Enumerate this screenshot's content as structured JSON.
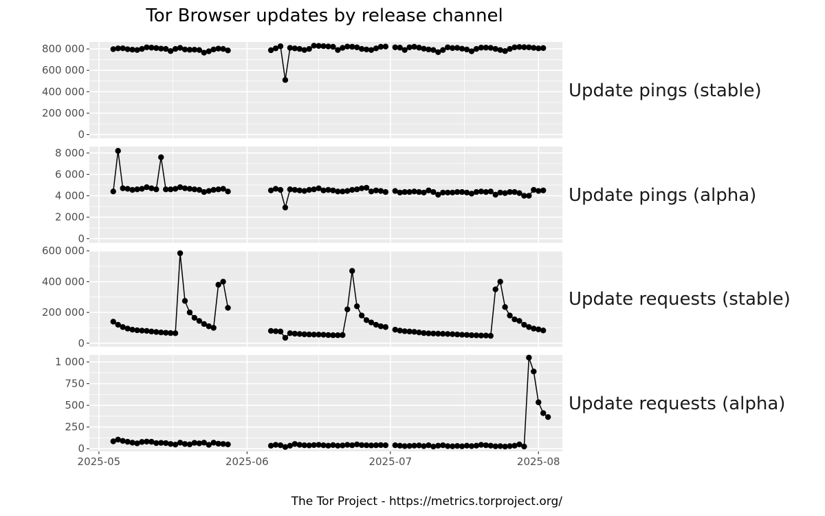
{
  "chart_data": {
    "type": "line",
    "title": "Tor Browser updates by release channel",
    "caption": "The Tor Project - https://metrics.torproject.org/",
    "x_ticks": [
      "2025-05",
      "2025-06",
      "2025-07",
      "2025-08"
    ],
    "x_range": [
      "2025-04-29",
      "2025-08-06"
    ],
    "grid": true,
    "panels": [
      {
        "label": "Update pings (stable)",
        "y_ticks": [
          0,
          200000,
          400000,
          600000,
          800000
        ],
        "y_tick_labels": [
          "0",
          "200 000",
          "400 000",
          "600 000",
          "800 000"
        ],
        "ylim": [
          -35000,
          865000
        ],
        "segments": [
          {
            "start": "2025-05-04",
            "values": [
              798000,
              805000,
              806000,
              797000,
              793000,
              790000,
              800000,
              815000,
              812000,
              808000,
              803000,
              800000,
              780000,
              800000,
              810000,
              795000,
              792000,
              793000,
              790000,
              765000,
              778000,
              795000,
              803000,
              800000,
              786000
            ]
          },
          {
            "start": "2025-06-06",
            "values": [
              788000,
              805000,
              825000,
              510000,
              810000,
              805000,
              800000,
              790000,
              800000,
              830000,
              828000,
              826000,
              823000,
              820000,
              790000,
              810000,
              822000,
              820000,
              815000,
              800000,
              795000,
              790000,
              805000,
              820000,
              822000
            ]
          },
          {
            "start": "2025-07-02",
            "values": [
              815000,
              812000,
              790000,
              815000,
              820000,
              812000,
              802000,
              795000,
              790000,
              770000,
              790000,
              815000,
              808000,
              810000,
              802000,
              795000,
              778000,
              800000,
              812000,
              812000,
              810000,
              800000,
              790000,
              780000,
              800000,
              815000,
              818000,
              816000,
              815000,
              810000,
              805000,
              808000
            ]
          }
        ]
      },
      {
        "label": "Update pings (alpha)",
        "y_ticks": [
          0,
          2000,
          4000,
          6000,
          8000
        ],
        "y_tick_labels": [
          "0",
          "2 000",
          "4 000",
          "6 000",
          "8 000"
        ],
        "ylim": [
          -400,
          8600
        ],
        "segments": [
          {
            "start": "2025-05-04",
            "values": [
              4400,
              8200,
              4700,
              4650,
              4550,
              4600,
              4650,
              4800,
              4700,
              4600,
              7600,
              4600,
              4600,
              4650,
              4800,
              4700,
              4650,
              4600,
              4550,
              4350,
              4450,
              4550,
              4600,
              4650,
              4400
            ]
          },
          {
            "start": "2025-06-06",
            "values": [
              4500,
              4650,
              4550,
              2900,
              4600,
              4550,
              4500,
              4450,
              4550,
              4600,
              4700,
              4500,
              4550,
              4500,
              4400,
              4400,
              4450,
              4550,
              4600,
              4700,
              4750,
              4400,
              4500,
              4450,
              4350
            ]
          },
          {
            "start": "2025-07-02",
            "values": [
              4450,
              4300,
              4350,
              4350,
              4400,
              4350,
              4300,
              4500,
              4350,
              4100,
              4300,
              4300,
              4300,
              4350,
              4350,
              4300,
              4200,
              4350,
              4400,
              4350,
              4400,
              4100,
              4300,
              4250,
              4350,
              4350,
              4250,
              4000,
              4000,
              4550,
              4450,
              4500
            ]
          }
        ]
      },
      {
        "label": "Update requests (stable)",
        "y_ticks": [
          0,
          200000,
          400000,
          600000
        ],
        "y_tick_labels": [
          "0",
          "200 000",
          "400 000",
          "600 000"
        ],
        "ylim": [
          -23000,
          603000
        ],
        "segments": [
          {
            "start": "2025-05-04",
            "values": [
              140000,
              120000,
              105000,
              95000,
              88000,
              84000,
              82000,
              80000,
              76000,
              73000,
              70000,
              68000,
              66000,
              65000,
              585000,
              275000,
              200000,
              165000,
              145000,
              125000,
              110000,
              100000,
              380000,
              400000,
              230000
            ]
          },
          {
            "start": "2025-06-06",
            "values": [
              80000,
              78000,
              76000,
              35000,
              65000,
              62000,
              60000,
              58000,
              57000,
              56000,
              56000,
              55000,
              53000,
              52000,
              52000,
              53000,
              220000,
              470000,
              240000,
              180000,
              150000,
              135000,
              120000,
              110000,
              105000
            ]
          },
          {
            "start": "2025-07-02",
            "values": [
              88000,
              82000,
              78000,
              76000,
              74000,
              70000,
              66000,
              64000,
              63000,
              62000,
              61000,
              60000,
              59000,
              57000,
              55000,
              54000,
              52000,
              51000,
              50000,
              50000,
              48000,
              350000,
              400000,
              235000,
              180000,
              155000,
              145000,
              120000,
              105000,
              95000,
              90000,
              83000
            ]
          }
        ]
      },
      {
        "label": "Update requests (alpha)",
        "y_ticks": [
          0,
          250,
          500,
          750,
          1000
        ],
        "y_tick_labels": [
          "0",
          "250",
          "500",
          "750",
          "1 000"
        ],
        "ylim": [
          -30,
          1080
        ],
        "segments": [
          {
            "start": "2025-05-04",
            "values": [
              85,
              105,
              90,
              80,
              70,
              62,
              78,
              82,
              80,
              65,
              68,
              65,
              55,
              48,
              70,
              55,
              50,
              68,
              62,
              70,
              45,
              70,
              58,
              55,
              50
            ]
          },
          {
            "start": "2025-06-06",
            "values": [
              35,
              45,
              40,
              20,
              35,
              55,
              45,
              40,
              38,
              42,
              45,
              40,
              35,
              42,
              35,
              38,
              45,
              40,
              50,
              42,
              40,
              38,
              40,
              42,
              40
            ]
          },
          {
            "start": "2025-07-02",
            "values": [
              40,
              35,
              30,
              32,
              35,
              38,
              30,
              40,
              25,
              35,
              40,
              30,
              28,
              32,
              28,
              35,
              30,
              35,
              45,
              40,
              35,
              28,
              30,
              25,
              30,
              35,
              50,
              25,
              1050,
              890,
              535,
              410,
              365
            ]
          }
        ]
      }
    ]
  }
}
